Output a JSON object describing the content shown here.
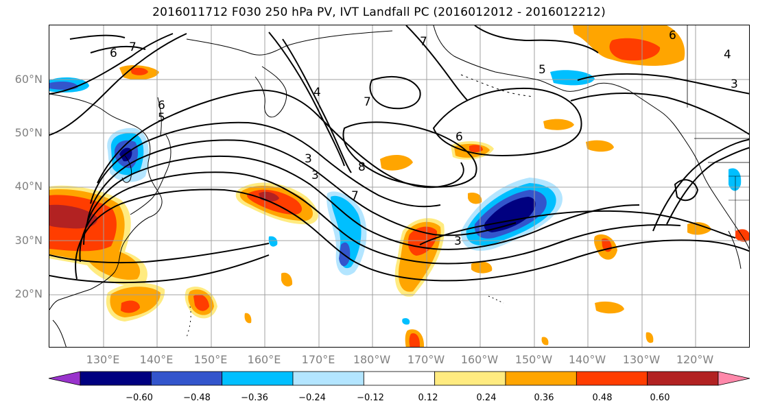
{
  "title": "2016011712 F030 250 hPa PV, IVT Landfall PC (2016012012 - 2016012212)",
  "latitude_labels": [
    "60°N",
    "50°N",
    "40°N",
    "30°N",
    "20°N"
  ],
  "longitude_labels": [
    "130°E",
    "140°E",
    "150°E",
    "160°E",
    "170°E",
    "180°W",
    "170°W",
    "160°W",
    "150°W",
    "140°W",
    "130°W",
    "120°W"
  ],
  "contour_labels": [
    "7",
    "6",
    "6",
    "5",
    "4",
    "8",
    "7",
    "7",
    "6",
    "5",
    "6",
    "4",
    "3",
    "7",
    "3",
    "3",
    "3"
  ],
  "colorbar": {
    "tick_labels": [
      "−0.60",
      "−0.48",
      "−0.36",
      "−0.24",
      "−0.12",
      "0.12",
      "0.24",
      "0.36",
      "0.48",
      "0.60"
    ],
    "colors": [
      "#9933cc",
      "#000080",
      "#3355cc",
      "#00bfff",
      "#b3e5ff",
      "#ffffff",
      "#ffeb80",
      "#ffa500",
      "#ff3d00",
      "#b22222",
      "#ff88aa"
    ]
  },
  "map_colors": {
    "contour": "#000000",
    "coastline": "#000000",
    "grid": "#a0a0a0"
  }
}
